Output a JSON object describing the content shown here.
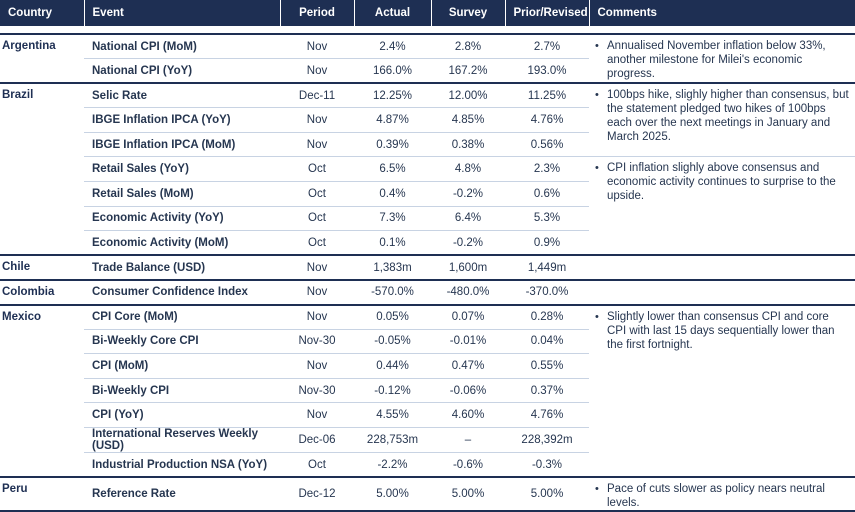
{
  "headers": {
    "country": "Country",
    "event": "Event",
    "period": "Period",
    "actual": "Actual",
    "survey": "Survey",
    "prior": "Prior/Revised",
    "comments": "Comments"
  },
  "rows": [
    {
      "country": "Argentina",
      "event": "National CPI (MoM)",
      "period": "Nov",
      "actual": "2.4%",
      "survey": "2.8%",
      "prior": "2.7%"
    },
    {
      "country": "",
      "event": "National CPI (YoY)",
      "period": "Nov",
      "actual": "166.0%",
      "survey": "167.2%",
      "prior": "193.0%"
    },
    {
      "country": "Brazil",
      "event": "Selic Rate",
      "period": "Dec-11",
      "actual": "12.25%",
      "survey": "12.00%",
      "prior": "11.25%"
    },
    {
      "country": "",
      "event": "IBGE Inflation IPCA (YoY)",
      "period": "Nov",
      "actual": "4.87%",
      "survey": "4.85%",
      "prior": "4.76%"
    },
    {
      "country": "",
      "event": "IBGE Inflation IPCA (MoM)",
      "period": "Nov",
      "actual": "0.39%",
      "survey": "0.38%",
      "prior": "0.56%"
    },
    {
      "country": "",
      "event": "Retail Sales (YoY)",
      "period": "Oct",
      "actual": "6.5%",
      "survey": "4.8%",
      "prior": "2.3%"
    },
    {
      "country": "",
      "event": "Retail Sales (MoM)",
      "period": "Oct",
      "actual": "0.4%",
      "survey": "-0.2%",
      "prior": "0.6%"
    },
    {
      "country": "",
      "event": "Economic Activity (YoY)",
      "period": "Oct",
      "actual": "7.3%",
      "survey": "6.4%",
      "prior": "5.3%"
    },
    {
      "country": "",
      "event": "Economic Activity (MoM)",
      "period": "Oct",
      "actual": "0.1%",
      "survey": "-0.2%",
      "prior": "0.9%"
    },
    {
      "country": "Chile",
      "event": "Trade Balance (USD)",
      "period": "Nov",
      "actual": "1,383m",
      "survey": "1,600m",
      "prior": "1,449m"
    },
    {
      "country": "Colombia",
      "event": "Consumer Confidence Index",
      "period": "Nov",
      "actual": "-570.0%",
      "survey": "-480.0%",
      "prior": "-370.0%"
    },
    {
      "country": "Mexico",
      "event": "CPI Core (MoM)",
      "period": "Nov",
      "actual": "0.05%",
      "survey": "0.07%",
      "prior": "0.28%"
    },
    {
      "country": "",
      "event": "Bi-Weekly Core CPI",
      "period": "Nov-30",
      "actual": "-0.05%",
      "survey": "-0.01%",
      "prior": "0.04%"
    },
    {
      "country": "",
      "event": "CPI (MoM)",
      "period": "Nov",
      "actual": "0.44%",
      "survey": "0.47%",
      "prior": "0.55%"
    },
    {
      "country": "",
      "event": "Bi-Weekly CPI",
      "period": "Nov-30",
      "actual": "-0.12%",
      "survey": "-0.06%",
      "prior": "0.37%"
    },
    {
      "country": "",
      "event": "CPI (YoY)",
      "period": "Nov",
      "actual": "4.55%",
      "survey": "4.60%",
      "prior": "4.76%"
    },
    {
      "country": "",
      "event": "International Reserves Weekly (USD)",
      "period": "Dec-06",
      "actual": "228,753m",
      "survey": "–",
      "prior": "228,392m"
    },
    {
      "country": "",
      "event": "Industrial Production NSA (YoY)",
      "period": "Oct",
      "actual": "-2.2%",
      "survey": "-0.6%",
      "prior": "-0.3%"
    },
    {
      "country": "Peru",
      "event": "Reference Rate",
      "period": "Dec-12",
      "actual": "5.00%",
      "survey": "5.00%",
      "prior": "5.00%"
    }
  ],
  "comments": {
    "argentina": "Annualised November inflation below 33%, another milestone for Milei's economic progress.",
    "brazil_selic": "100bps hike, slighly higher than consensus, but the statement pledged two hikes of 100bps each over the next meetings in January and March 2025.",
    "brazil_cpi": "CPI inflation slighly above consensus and economic activity continues to surprise to the upside.",
    "mexico": "Slightly lower than consensus CPI and core CPI with last 15 days sequentially lower than the first fortnight.",
    "peru": "Pace of cuts slower as policy nears neutral levels."
  },
  "bullet_char": "•"
}
